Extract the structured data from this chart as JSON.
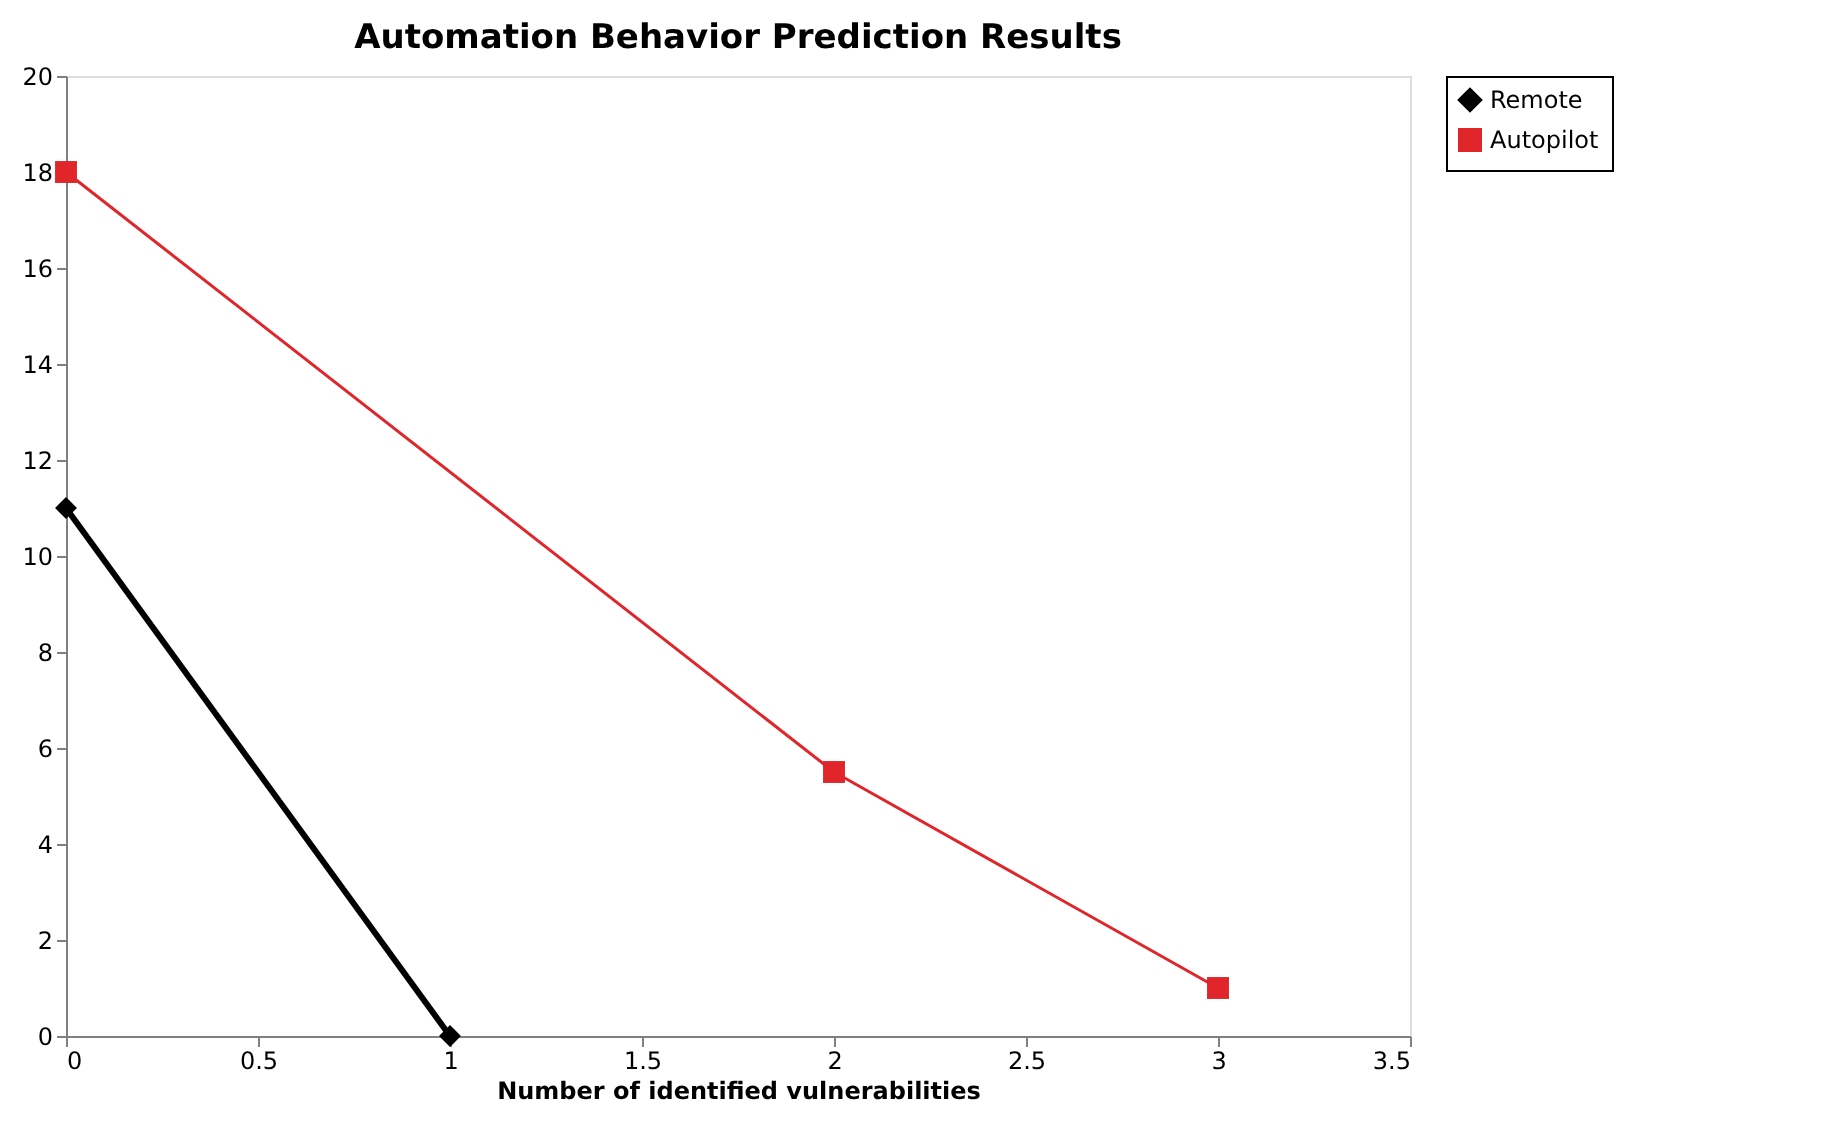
{
  "chart_data": {
    "type": "line",
    "title": "Automation Behavior Prediction Results",
    "xlabel": "Number of identified vulnerabilities",
    "series": [
      {
        "name": "Remote",
        "color": "#000000",
        "marker": "diamond",
        "x": [
          0,
          1
        ],
        "values": [
          11,
          0
        ]
      },
      {
        "name": "Autopilot",
        "color": "#e0262b",
        "marker": "square",
        "x": [
          0,
          2,
          3
        ],
        "values": [
          18,
          5.5,
          1
        ]
      }
    ],
    "xlim": [
      0,
      3.5
    ],
    "xticks": [
      0,
      0.5,
      1,
      1.5,
      2,
      2.5,
      3,
      3.5
    ],
    "ylim": [
      0,
      20
    ],
    "yticks": [
      0,
      2,
      4,
      6,
      8,
      10,
      12,
      14,
      16,
      18,
      20
    ],
    "grid": false,
    "legend": "right"
  }
}
